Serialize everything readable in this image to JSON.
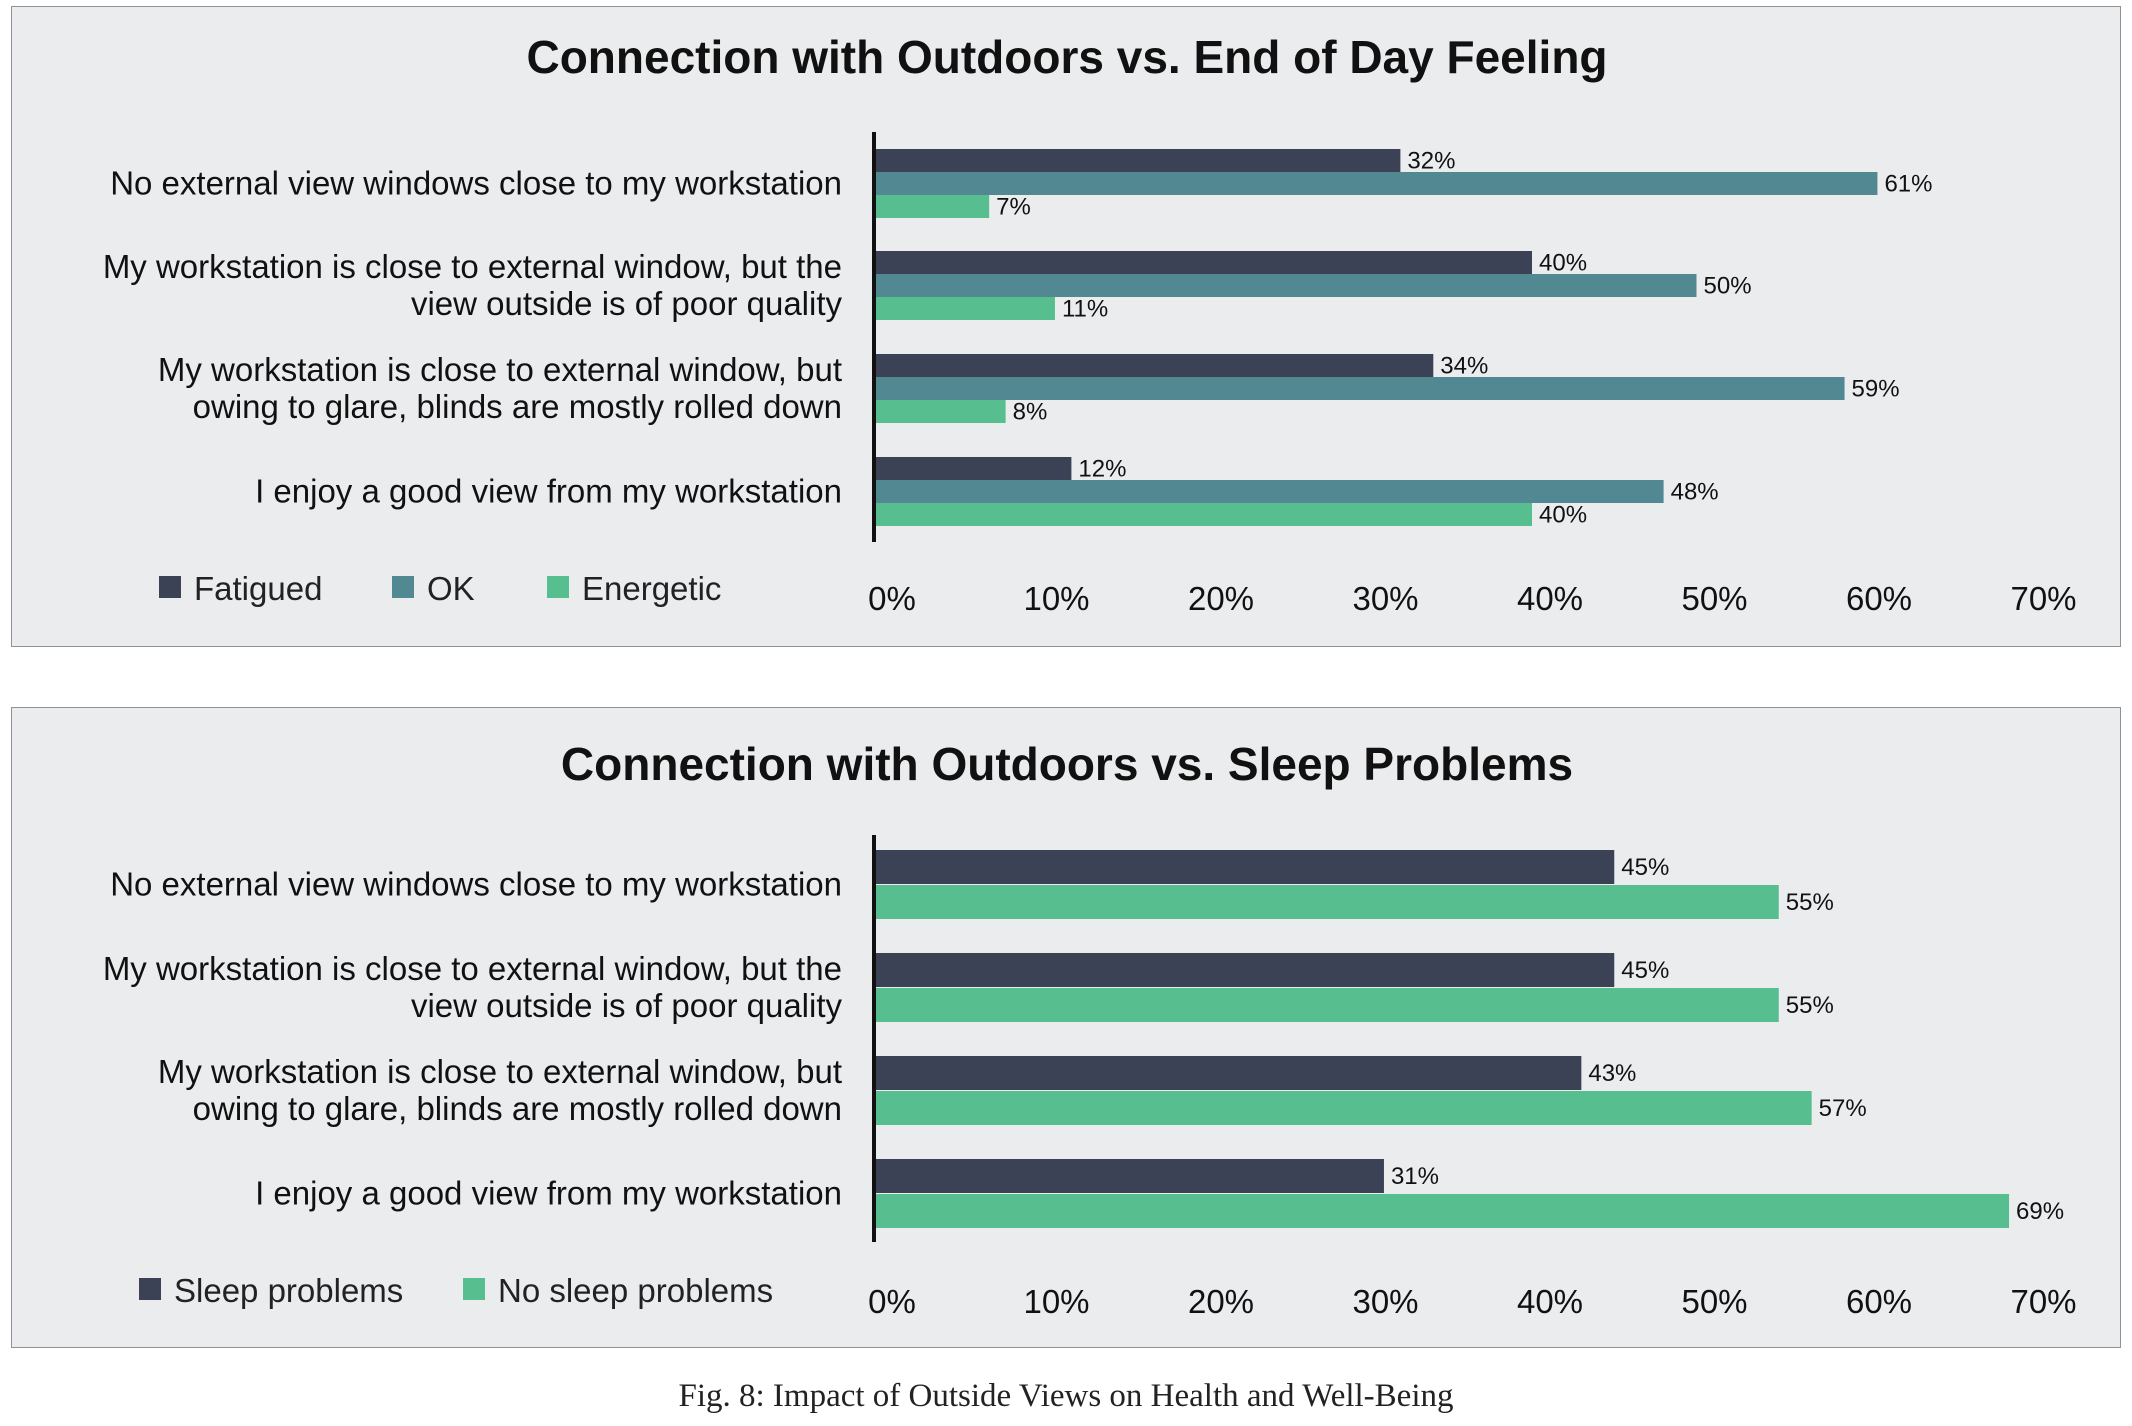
{
  "chart_data": [
    {
      "type": "bar",
      "orientation": "horizontal",
      "title": "Connection with Outdoors vs. End of Day Feeling",
      "categories": [
        "No external view windows close to my workstation",
        "My workstation is close to external window, but the view outside is of poor quality",
        "My workstation is close to external window, but owing to glare, blinds are mostly rolled down",
        "I enjoy a good view from my workstation"
      ],
      "category_lines": [
        [
          "No external view windows close to my workstation"
        ],
        [
          "My workstation is close to external window, but the",
          "view outside is of poor quality"
        ],
        [
          "My workstation is close to external window, but",
          "owing to glare, blinds are mostly rolled down"
        ],
        [
          "I enjoy a good view from my workstation"
        ]
      ],
      "series": [
        {
          "name": "Fatigued",
          "values": [
            32,
            40,
            34,
            12
          ],
          "labels": [
            "32%",
            "40%",
            "34%",
            "12%"
          ],
          "color": "#3b4255"
        },
        {
          "name": "OK",
          "values": [
            61,
            50,
            59,
            48
          ],
          "labels": [
            "61%",
            "50%",
            "59%",
            "48%"
          ],
          "color": "#528891"
        },
        {
          "name": "Energetic",
          "values": [
            7,
            11,
            8,
            40
          ],
          "labels": [
            "7%",
            "11%",
            "8%",
            "40%"
          ],
          "color": "#57be90"
        }
      ],
      "xlim": [
        0,
        70
      ],
      "xticks": [
        "0%",
        "10%",
        "20%",
        "30%",
        "40%",
        "50%",
        "60%",
        "70%"
      ],
      "legend_position": "bottom-left",
      "grid": false
    },
    {
      "type": "bar",
      "orientation": "horizontal",
      "title": "Connection with Outdoors vs. Sleep Problems",
      "categories": [
        "No external view windows close to my workstation",
        "My workstation is close to external window, but the view outside is of poor quality",
        "My workstation is close to external window, but owing to glare, blinds are mostly rolled down",
        "I enjoy a good view from my workstation"
      ],
      "category_lines": [
        [
          "No external view windows close to my workstation"
        ],
        [
          "My workstation is close to external window, but the",
          "view outside is of poor quality"
        ],
        [
          "My workstation is close to external window, but",
          "owing to glare, blinds are mostly rolled down"
        ],
        [
          "I enjoy a good view from my workstation"
        ]
      ],
      "series": [
        {
          "name": "Sleep problems",
          "values": [
            45,
            45,
            43,
            31
          ],
          "labels": [
            "45%",
            "45%",
            "43%",
            "31%"
          ],
          "color": "#3b4255"
        },
        {
          "name": "No sleep problems",
          "values": [
            55,
            55,
            57,
            69
          ],
          "labels": [
            "55%",
            "55%",
            "57%",
            "69%"
          ],
          "color": "#57be90"
        }
      ],
      "xlim": [
        0,
        70
      ],
      "xticks": [
        "0%",
        "10%",
        "20%",
        "30%",
        "40%",
        "50%",
        "60%",
        "70%"
      ],
      "legend_position": "bottom-left",
      "grid": false
    }
  ],
  "figure_caption": "Fig. 8: Impact of Outside Views on Health and Well-Being"
}
